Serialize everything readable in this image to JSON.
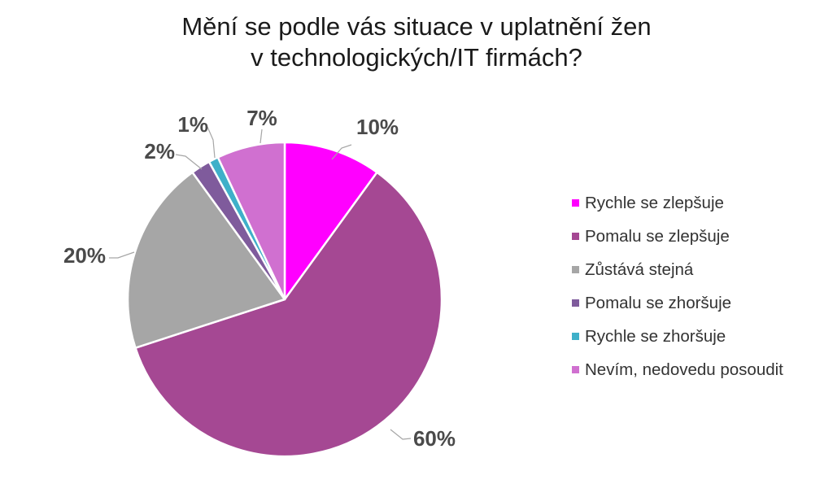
{
  "title_line1": "Mění se podle vás situace v uplatnění žen",
  "title_line2": "v technologických/IT firmách?",
  "chart_data": {
    "type": "pie",
    "title": "Mění se podle vás situace v uplatnění žen v technologických/IT firmách?",
    "start_angle_deg": 0,
    "direction": "clockwise",
    "legend_position": "right",
    "slices": [
      {
        "label": "Rychle se zlepšuje",
        "value": 10,
        "value_label": "10%",
        "color": "#ff00ff"
      },
      {
        "label": "Pomalu se zlepšuje",
        "value": 60,
        "value_label": "60%",
        "color": "#a54893"
      },
      {
        "label": "Zůstává stejná",
        "value": 20,
        "value_label": "20%",
        "color": "#a6a6a6"
      },
      {
        "label": "Pomalu se zhoršuje",
        "value": 2,
        "value_label": "2%",
        "color": "#7f5b9c"
      },
      {
        "label": "Rychle se zhoršuje",
        "value": 1,
        "value_label": "1%",
        "color": "#3fb0c9"
      },
      {
        "label": "Nevím, nedovedu posoudit",
        "value": 7,
        "value_label": "7%",
        "color": "#d070d0"
      }
    ]
  }
}
